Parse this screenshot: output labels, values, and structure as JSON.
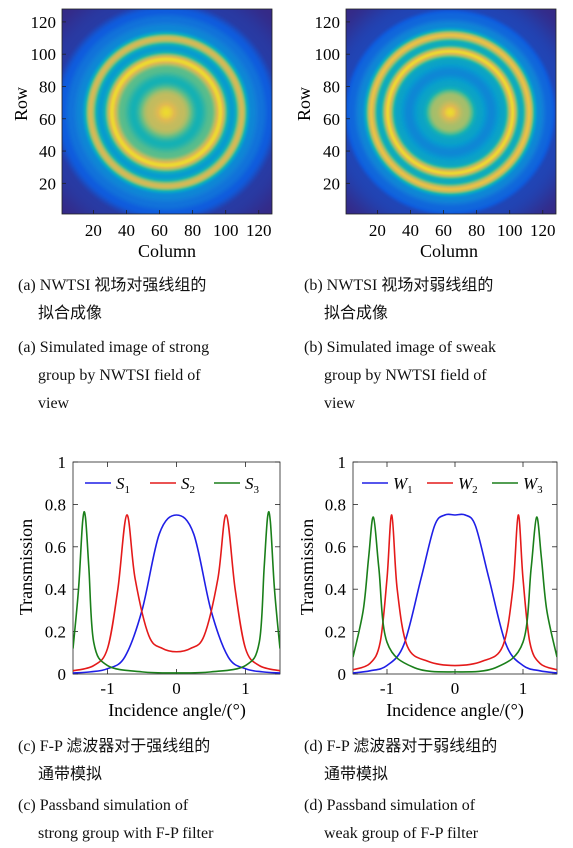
{
  "panels": {
    "a": {
      "xlabel": "Column",
      "ylabel": "Row",
      "xticks": [
        "20",
        "40",
        "60",
        "80",
        "100",
        "120"
      ],
      "yticks": [
        "20",
        "40",
        "60",
        "80",
        "100",
        "120"
      ],
      "caption_cn": [
        "(a) NWTSI 视场对强线组的",
        "拟合成像"
      ],
      "caption_en": [
        "(a) Simulated image of strong",
        "group by NWTSI field of",
        "view"
      ]
    },
    "b": {
      "xlabel": "Column",
      "ylabel": "Row",
      "xticks": [
        "20",
        "40",
        "60",
        "80",
        "100",
        "120"
      ],
      "yticks": [
        "20",
        "40",
        "60",
        "80",
        "100",
        "120"
      ],
      "caption_cn": [
        "(b) NWTSI 视场对弱线组的",
        "拟合成像"
      ],
      "caption_en": [
        "(b) Simulated image of sweak",
        "group by NWTSI field of",
        "view"
      ]
    },
    "c": {
      "caption_cn": [
        "(c) F-P 滤波器对于强线组的",
        "通带模拟"
      ],
      "caption_en": [
        "(c) Passband simulation of",
        "strong group with F-P filter"
      ]
    },
    "d": {
      "caption_cn": [
        "(d) F-P 滤波器对于弱线组的",
        "通带模拟"
      ],
      "caption_en": [
        "(d) Passband simulation of",
        "weak group of F-P  filter"
      ]
    }
  },
  "colors": {
    "blue": "#1f1fe6",
    "red": "#e41a1a",
    "green": "#1a7f1a"
  },
  "chart_data": [
    {
      "type": "heatmap",
      "panel": "a",
      "xlabel": "Column",
      "ylabel": "Row",
      "xlim": [
        1,
        128
      ],
      "ylim": [
        1,
        128
      ],
      "center": [
        64,
        64
      ],
      "radial_profile": [
        [
          0,
          0.95
        ],
        [
          10,
          0.85
        ],
        [
          20,
          0.6
        ],
        [
          27,
          0.7
        ],
        [
          33,
          0.95
        ],
        [
          40,
          0.45
        ],
        [
          46,
          0.88
        ],
        [
          52,
          0.35
        ],
        [
          58,
          0.25
        ],
        [
          63,
          0.15
        ],
        [
          70,
          0.05
        ],
        [
          90,
          0.0
        ]
      ]
    },
    {
      "type": "heatmap",
      "panel": "b",
      "xlabel": "Column",
      "ylabel": "Row",
      "xlim": [
        1,
        128
      ],
      "ylim": [
        1,
        128
      ],
      "center": [
        64,
        64
      ],
      "radial_profile": [
        [
          0,
          0.95
        ],
        [
          10,
          0.8
        ],
        [
          18,
          0.5
        ],
        [
          25,
          0.35
        ],
        [
          32,
          0.5
        ],
        [
          38,
          0.95
        ],
        [
          43,
          0.55
        ],
        [
          48,
          0.92
        ],
        [
          54,
          0.35
        ],
        [
          60,
          0.2
        ],
        [
          66,
          0.08
        ],
        [
          90,
          0.0
        ]
      ]
    },
    {
      "type": "line",
      "panel": "c",
      "xlabel": "Incidence angle/(°)",
      "ylabel": "Transmission",
      "xlim": [
        -1.5,
        1.5
      ],
      "ylim": [
        0,
        1
      ],
      "xticks": [
        -1,
        0,
        1
      ],
      "yticks": [
        0,
        0.2,
        0.4,
        0.6,
        0.8,
        1
      ],
      "series": [
        {
          "name": "S1",
          "sub": "1",
          "color": "blue",
          "x": [
            -1.5,
            -1.25,
            -1.0,
            -0.75,
            -0.5,
            -0.25,
            0,
            0.25,
            0.5,
            0.75,
            1.0,
            1.25,
            1.5
          ],
          "y": [
            0.005,
            0.01,
            0.025,
            0.08,
            0.3,
            0.66,
            0.75,
            0.66,
            0.3,
            0.08,
            0.025,
            0.01,
            0.005
          ]
        },
        {
          "name": "S2",
          "sub": "2",
          "color": "red",
          "x": [
            -1.5,
            -1.2,
            -1.0,
            -0.85,
            -0.72,
            -0.6,
            -0.4,
            -0.2,
            0,
            0.2,
            0.4,
            0.6,
            0.72,
            0.85,
            1.0,
            1.2,
            1.5
          ],
          "y": [
            0.015,
            0.04,
            0.12,
            0.4,
            0.75,
            0.45,
            0.18,
            0.12,
            0.105,
            0.12,
            0.18,
            0.45,
            0.75,
            0.4,
            0.12,
            0.04,
            0.015
          ]
        },
        {
          "name": "S3",
          "sub": "3",
          "color": "green",
          "x": [
            -1.5,
            -1.42,
            -1.36,
            -1.32,
            -1.27,
            -1.2,
            -1.0,
            -0.5,
            0,
            0.5,
            1.0,
            1.2,
            1.27,
            1.32,
            1.36,
            1.42,
            1.5
          ],
          "y": [
            0.12,
            0.4,
            0.72,
            0.74,
            0.5,
            0.15,
            0.04,
            0.01,
            0.005,
            0.01,
            0.04,
            0.15,
            0.5,
            0.74,
            0.72,
            0.4,
            0.12
          ]
        }
      ]
    },
    {
      "type": "line",
      "panel": "d",
      "xlabel": "Incidence angle/(°)",
      "ylabel": "Transmission",
      "xlim": [
        -1.5,
        1.5
      ],
      "ylim": [
        0,
        1
      ],
      "xticks": [
        -1,
        0,
        1
      ],
      "yticks": [
        0,
        0.2,
        0.4,
        0.6,
        0.8,
        1
      ],
      "series": [
        {
          "name": "W1",
          "sub": "1",
          "color": "blue",
          "x": [
            -1.5,
            -1.25,
            -1.0,
            -0.75,
            -0.5,
            -0.3,
            -0.15,
            0,
            0.15,
            0.3,
            0.5,
            0.75,
            1.0,
            1.25,
            1.5
          ],
          "y": [
            0.005,
            0.015,
            0.04,
            0.14,
            0.45,
            0.7,
            0.75,
            0.75,
            0.75,
            0.7,
            0.45,
            0.14,
            0.04,
            0.015,
            0.005
          ]
        },
        {
          "name": "W2",
          "sub": "2",
          "color": "red",
          "x": [
            -1.5,
            -1.25,
            -1.1,
            -1.0,
            -0.93,
            -0.85,
            -0.7,
            -0.4,
            0,
            0.4,
            0.7,
            0.85,
            0.93,
            1.0,
            1.1,
            1.25,
            1.5
          ],
          "y": [
            0.02,
            0.05,
            0.15,
            0.45,
            0.75,
            0.4,
            0.13,
            0.06,
            0.04,
            0.06,
            0.13,
            0.4,
            0.75,
            0.45,
            0.15,
            0.05,
            0.02
          ]
        },
        {
          "name": "W3",
          "sub": "3",
          "color": "green",
          "x": [
            -1.5,
            -1.35,
            -1.27,
            -1.2,
            -1.12,
            -1.0,
            -0.6,
            0,
            0.6,
            1.0,
            1.12,
            1.2,
            1.27,
            1.35,
            1.5
          ],
          "y": [
            0.08,
            0.3,
            0.55,
            0.74,
            0.5,
            0.15,
            0.03,
            0.01,
            0.03,
            0.15,
            0.5,
            0.74,
            0.55,
            0.3,
            0.08
          ]
        }
      ]
    }
  ]
}
